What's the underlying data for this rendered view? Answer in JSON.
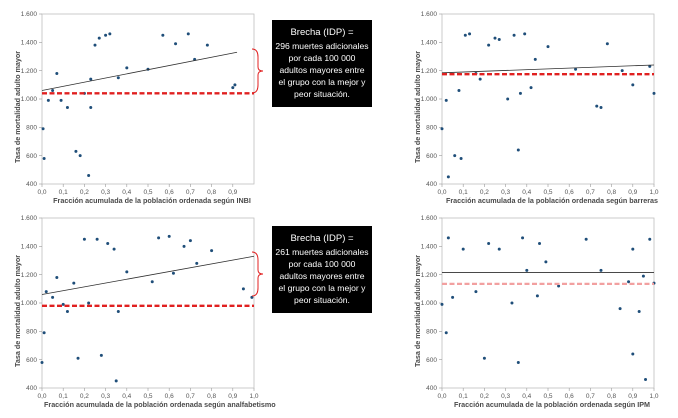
{
  "colors": {
    "dot": "#1f4e79",
    "trend": "#2f2f2f",
    "gap_line": "#e02020",
    "gap_line_light": "#f2a0a0",
    "bracket": "#e02020",
    "callout_bg": "#000000"
  },
  "callouts": [
    {
      "title": "Brecha (IDP) =",
      "body": "296 muertes adicionales por cada 100 000 adultos mayores entre el grupo con la mejor y peor situación."
    },
    {
      "title": "Brecha (IDP) =",
      "body": "261 muertes adicionales por cada 100 000 adultos mayores entre el grupo con la mejor y peor situación."
    }
  ],
  "chart_data": [
    {
      "type": "scatter",
      "ylabel": "Tasa de mortalidad adulto mayor",
      "xlabel": "Fracción acumulada de la población ordenada según INBI",
      "xlim": [
        0,
        1.0
      ],
      "ylim": [
        400,
        1600
      ],
      "xticks": [
        "0,0",
        "0,1",
        "0,2",
        "0,3",
        "0,4",
        "0,5",
        "0,6",
        "0,7",
        "0,8",
        "0,9"
      ],
      "yticks": [
        "400",
        "600",
        "800",
        "1.000",
        "1.200",
        "1.400",
        "1.600"
      ],
      "points": [
        [
          0.005,
          790
        ],
        [
          0.01,
          580
        ],
        [
          0.03,
          990
        ],
        [
          0.05,
          1060
        ],
        [
          0.07,
          1180
        ],
        [
          0.09,
          990
        ],
        [
          0.12,
          940
        ],
        [
          0.16,
          630
        ],
        [
          0.18,
          600
        ],
        [
          0.2,
          1040
        ],
        [
          0.22,
          460
        ],
        [
          0.23,
          1140
        ],
        [
          0.23,
          940
        ],
        [
          0.25,
          1380
        ],
        [
          0.27,
          1430
        ],
        [
          0.3,
          1450
        ],
        [
          0.32,
          1460
        ],
        [
          0.36,
          1150
        ],
        [
          0.4,
          1220
        ],
        [
          0.5,
          1210
        ],
        [
          0.57,
          1450
        ],
        [
          0.63,
          1390
        ],
        [
          0.69,
          1460
        ],
        [
          0.72,
          1280
        ],
        [
          0.78,
          1380
        ],
        [
          0.9,
          1080
        ],
        [
          0.91,
          1100
        ]
      ],
      "trend": [
        [
          0.0,
          1060
        ],
        [
          0.92,
          1330
        ]
      ],
      "gap_line": 1040,
      "gap_style": "dashed"
    },
    {
      "type": "scatter",
      "ylabel": "Tasa de mortalidad adulto mayor",
      "xlabel": "Fracción acumulada de la población ordenada según barreras",
      "xlim": [
        0,
        1.0
      ],
      "ylim": [
        400,
        1600
      ],
      "xticks": [
        "0,0",
        "0,1",
        "0,2",
        "0,3",
        "0,4",
        "0,5",
        "0,6",
        "0,7",
        "0,8",
        "0,9",
        "1,0"
      ],
      "yticks": [
        "400",
        "600",
        "800",
        "1.000",
        "1.200",
        "1.400",
        "1.600"
      ],
      "points": [
        [
          0.0,
          790
        ],
        [
          0.02,
          990
        ],
        [
          0.03,
          450
        ],
        [
          0.06,
          600
        ],
        [
          0.08,
          1060
        ],
        [
          0.09,
          580
        ],
        [
          0.11,
          1450
        ],
        [
          0.13,
          1460
        ],
        [
          0.16,
          1180
        ],
        [
          0.18,
          1140
        ],
        [
          0.22,
          1380
        ],
        [
          0.25,
          1430
        ],
        [
          0.27,
          1420
        ],
        [
          0.31,
          1000
        ],
        [
          0.34,
          1450
        ],
        [
          0.36,
          640
        ],
        [
          0.37,
          1040
        ],
        [
          0.39,
          1460
        ],
        [
          0.42,
          1080
        ],
        [
          0.44,
          1280
        ],
        [
          0.5,
          1370
        ],
        [
          0.63,
          1210
        ],
        [
          0.73,
          950
        ],
        [
          0.75,
          940
        ],
        [
          0.78,
          1390
        ],
        [
          0.85,
          1200
        ],
        [
          0.9,
          1100
        ],
        [
          0.98,
          1230
        ],
        [
          1.0,
          1040
        ]
      ],
      "trend": [
        [
          0.0,
          1185
        ],
        [
          1.0,
          1240
        ]
      ],
      "gap_line": 1175,
      "gap_style": "dashed"
    },
    {
      "type": "scatter",
      "ylabel": "Tasa de mortalidad adulto mayor",
      "xlabel": "Fracción acumulada de la población ordenada según analfabetismo",
      "xlim": [
        0,
        1.0
      ],
      "ylim": [
        400,
        1600
      ],
      "xticks": [
        "0,0",
        "0,1",
        "0,2",
        "0,3",
        "0,4",
        "0,5",
        "0,6",
        "0,7",
        "0,8",
        "0,9",
        "1,0"
      ],
      "yticks": [
        "400",
        "600",
        "800",
        "1.000",
        "1.200",
        "1.400",
        "1.600"
      ],
      "points": [
        [
          0.0,
          580
        ],
        [
          0.01,
          790
        ],
        [
          0.02,
          1080
        ],
        [
          0.05,
          1040
        ],
        [
          0.07,
          1180
        ],
        [
          0.1,
          990
        ],
        [
          0.12,
          940
        ],
        [
          0.15,
          1140
        ],
        [
          0.17,
          610
        ],
        [
          0.2,
          1450
        ],
        [
          0.22,
          1000
        ],
        [
          0.26,
          1450
        ],
        [
          0.28,
          630
        ],
        [
          0.31,
          1420
        ],
        [
          0.34,
          1380
        ],
        [
          0.35,
          450
        ],
        [
          0.36,
          940
        ],
        [
          0.4,
          1220
        ],
        [
          0.52,
          1150
        ],
        [
          0.55,
          1460
        ],
        [
          0.6,
          1470
        ],
        [
          0.62,
          1210
        ],
        [
          0.67,
          1400
        ],
        [
          0.7,
          1440
        ],
        [
          0.73,
          1280
        ],
        [
          0.8,
          1370
        ],
        [
          0.95,
          1100
        ],
        [
          0.99,
          1040
        ]
      ],
      "trend": [
        [
          0.0,
          1060
        ],
        [
          1.0,
          1330
        ]
      ],
      "gap_line": 980,
      "gap_style": "dashed"
    },
    {
      "type": "scatter",
      "ylabel": "Tasa de mortalidad adulto mayor",
      "xlabel": "Fracción acumulada de la población ordenada según IPM",
      "xlim": [
        0,
        1.0
      ],
      "ylim": [
        400,
        1600
      ],
      "xticks": [
        "0,0",
        "0,1",
        "0,2",
        "0,3",
        "0,4",
        "0,5",
        "0,6",
        "0,7",
        "0,8",
        "0,9",
        "1,0"
      ],
      "yticks": [
        "400",
        "600",
        "800",
        "1.000",
        "1.200",
        "1.400",
        "1.600"
      ],
      "points": [
        [
          0.0,
          990
        ],
        [
          0.02,
          790
        ],
        [
          0.03,
          1460
        ],
        [
          0.05,
          1040
        ],
        [
          0.1,
          1380
        ],
        [
          0.16,
          1080
        ],
        [
          0.2,
          610
        ],
        [
          0.22,
          1420
        ],
        [
          0.27,
          1380
        ],
        [
          0.33,
          1000
        ],
        [
          0.36,
          580
        ],
        [
          0.38,
          1460
        ],
        [
          0.4,
          1230
        ],
        [
          0.45,
          1050
        ],
        [
          0.46,
          1420
        ],
        [
          0.49,
          1290
        ],
        [
          0.55,
          1120
        ],
        [
          0.68,
          1450
        ],
        [
          0.75,
          1230
        ],
        [
          0.84,
          960
        ],
        [
          0.88,
          1150
        ],
        [
          0.9,
          640
        ],
        [
          0.9,
          1380
        ],
        [
          0.93,
          940
        ],
        [
          0.95,
          1190
        ],
        [
          0.96,
          460
        ],
        [
          0.98,
          1450
        ],
        [
          1.0,
          1140
        ]
      ],
      "trend": [
        [
          0.0,
          1215
        ],
        [
          1.0,
          1215
        ]
      ],
      "gap_line": 1135,
      "gap_style": "dashed-light"
    }
  ]
}
